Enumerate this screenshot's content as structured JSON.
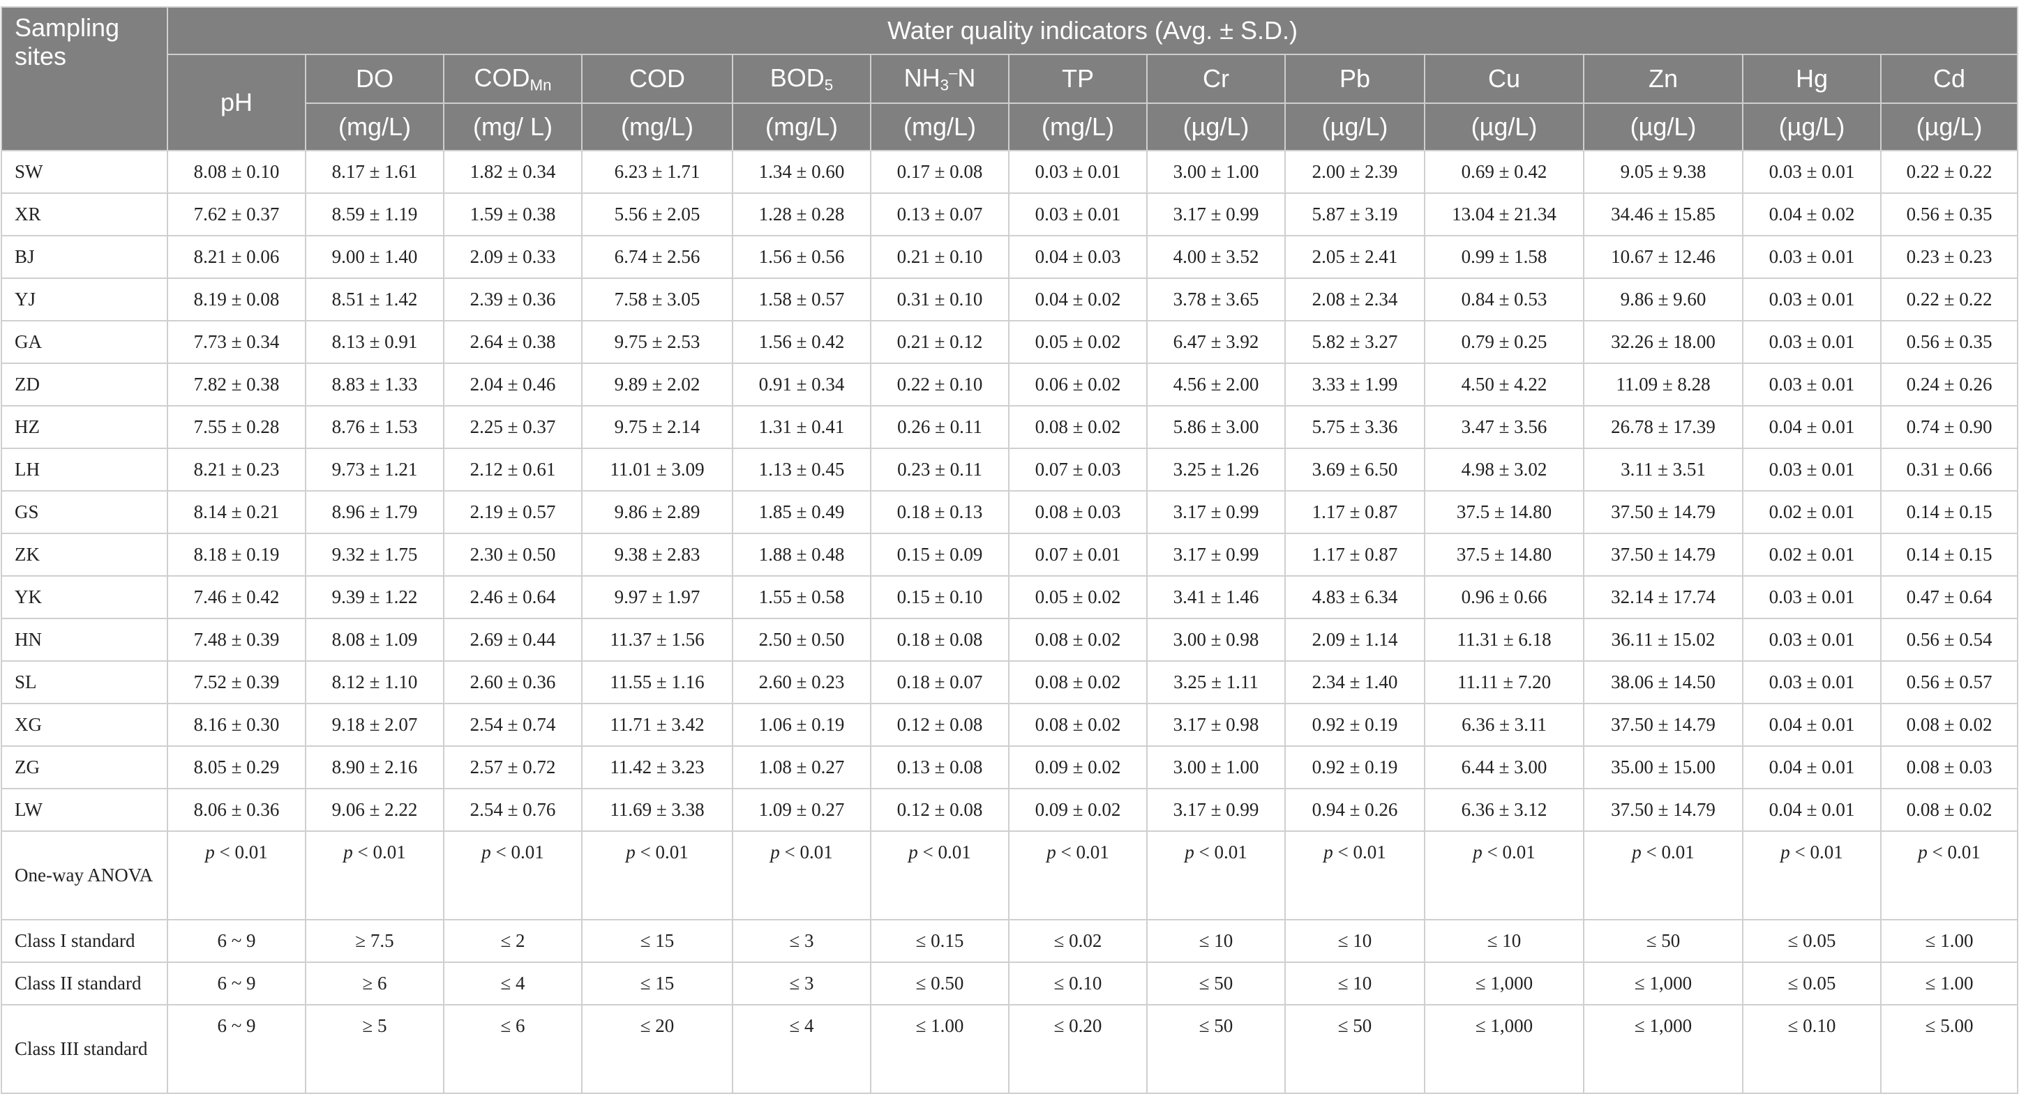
{
  "table": {
    "site_header": "Sampling sites",
    "group_header": "Water quality indicators (Avg. ± S.D.)",
    "indicators": [
      {
        "name": "pH",
        "sub": "",
        "sup": "",
        "suffix": "",
        "unit": ""
      },
      {
        "name": "DO",
        "sub": "",
        "sup": "",
        "suffix": "",
        "unit": "(mg/L)"
      },
      {
        "name": "COD",
        "sub": "Mn",
        "sup": "",
        "suffix": "",
        "unit": "(mg/ L)"
      },
      {
        "name": "COD",
        "sub": "",
        "sup": "",
        "suffix": "",
        "unit": "(mg/L)"
      },
      {
        "name": "BOD",
        "sub": "5",
        "sup": "",
        "suffix": "",
        "unit": "(mg/L)"
      },
      {
        "name": "NH",
        "sub": "3",
        "sup": "–",
        "suffix": "N",
        "unit": "(mg/L)"
      },
      {
        "name": "TP",
        "sub": "",
        "sup": "",
        "suffix": "",
        "unit": "(mg/L)"
      },
      {
        "name": "Cr",
        "sub": "",
        "sup": "",
        "suffix": "",
        "unit": "(µg/L)"
      },
      {
        "name": "Pb",
        "sub": "",
        "sup": "",
        "suffix": "",
        "unit": "(µg/L)"
      },
      {
        "name": "Cu",
        "sub": "",
        "sup": "",
        "suffix": "",
        "unit": "(µg/L)"
      },
      {
        "name": "Zn",
        "sub": "",
        "sup": "",
        "suffix": "",
        "unit": "(µg/L)"
      },
      {
        "name": "Hg",
        "sub": "",
        "sup": "",
        "suffix": "",
        "unit": "(µg/L)"
      },
      {
        "name": "Cd",
        "sub": "",
        "sup": "",
        "suffix": "",
        "unit": "(µg/L)"
      }
    ],
    "rows": [
      {
        "site": "SW",
        "values": [
          "8.08 ± 0.10",
          "8.17 ± 1.61",
          "1.82 ± 0.34",
          "6.23 ± 1.71",
          "1.34 ± 0.60",
          "0.17 ± 0.08",
          "0.03 ± 0.01",
          "3.00 ± 1.00",
          "2.00 ± 2.39",
          "0.69 ± 0.42",
          "9.05 ± 9.38",
          "0.03 ± 0.01",
          "0.22 ± 0.22"
        ]
      },
      {
        "site": "XR",
        "values": [
          "7.62 ± 0.37",
          "8.59 ± 1.19",
          "1.59 ± 0.38",
          "5.56 ± 2.05",
          "1.28 ± 0.28",
          "0.13 ± 0.07",
          "0.03 ± 0.01",
          "3.17 ± 0.99",
          "5.87 ± 3.19",
          "13.04 ± 21.34",
          "34.46 ± 15.85",
          "0.04 ± 0.02",
          "0.56 ± 0.35"
        ]
      },
      {
        "site": "BJ",
        "values": [
          "8.21 ± 0.06",
          "9.00 ± 1.40",
          "2.09 ± 0.33",
          "6.74 ± 2.56",
          "1.56 ± 0.56",
          "0.21 ± 0.10",
          "0.04 ± 0.03",
          "4.00 ± 3.52",
          "2.05 ± 2.41",
          "0.99 ± 1.58",
          "10.67 ± 12.46",
          "0.03 ± 0.01",
          "0.23 ± 0.23"
        ]
      },
      {
        "site": "YJ",
        "values": [
          "8.19 ± 0.08",
          "8.51 ± 1.42",
          "2.39 ± 0.36",
          "7.58 ± 3.05",
          "1.58 ± 0.57",
          "0.31 ± 0.10",
          "0.04 ± 0.02",
          "3.78 ± 3.65",
          "2.08 ± 2.34",
          "0.84 ± 0.53",
          "9.86 ± 9.60",
          "0.03 ± 0.01",
          "0.22 ± 0.22"
        ]
      },
      {
        "site": "GA",
        "values": [
          "7.73 ± 0.34",
          "8.13 ± 0.91",
          "2.64 ± 0.38",
          "9.75 ± 2.53",
          "1.56 ± 0.42",
          "0.21 ± 0.12",
          "0.05 ± 0.02",
          "6.47 ± 3.92",
          "5.82 ± 3.27",
          "0.79 ± 0.25",
          "32.26 ± 18.00",
          "0.03 ± 0.01",
          "0.56 ± 0.35"
        ]
      },
      {
        "site": "ZD",
        "values": [
          "7.82 ± 0.38",
          "8.83 ± 1.33",
          "2.04 ± 0.46",
          "9.89 ± 2.02",
          "0.91 ± 0.34",
          "0.22 ± 0.10",
          "0.06 ± 0.02",
          "4.56 ± 2.00",
          "3.33 ± 1.99",
          "4.50 ± 4.22",
          "11.09 ± 8.28",
          "0.03 ± 0.01",
          "0.24 ± 0.26"
        ]
      },
      {
        "site": "HZ",
        "values": [
          "7.55 ± 0.28",
          "8.76 ± 1.53",
          "2.25 ± 0.37",
          "9.75 ± 2.14",
          "1.31 ± 0.41",
          "0.26 ± 0.11",
          "0.08 ± 0.02",
          "5.86 ± 3.00",
          "5.75 ± 3.36",
          "3.47 ± 3.56",
          "26.78 ± 17.39",
          "0.04 ± 0.01",
          "0.74 ± 0.90"
        ]
      },
      {
        "site": "LH",
        "values": [
          "8.21 ± 0.23",
          "9.73 ± 1.21",
          "2.12 ± 0.61",
          "11.01 ± 3.09",
          "1.13 ± 0.45",
          "0.23 ± 0.11",
          "0.07 ± 0.03",
          "3.25 ± 1.26",
          "3.69 ± 6.50",
          "4.98 ± 3.02",
          "3.11 ± 3.51",
          "0.03 ± 0.01",
          "0.31 ± 0.66"
        ]
      },
      {
        "site": "GS",
        "values": [
          "8.14 ± 0.21",
          "8.96 ± 1.79",
          "2.19 ± 0.57",
          "9.86 ± 2.89",
          "1.85 ± 0.49",
          "0.18 ± 0.13",
          "0.08 ± 0.03",
          "3.17 ± 0.99",
          "1.17 ± 0.87",
          "37.5 ± 14.80",
          "37.50 ± 14.79",
          "0.02 ± 0.01",
          "0.14 ± 0.15"
        ]
      },
      {
        "site": "ZK",
        "values": [
          "8.18 ± 0.19",
          "9.32 ± 1.75",
          "2.30 ± 0.50",
          "9.38 ± 2.83",
          "1.88 ± 0.48",
          "0.15 ± 0.09",
          "0.07 ± 0.01",
          "3.17 ± 0.99",
          "1.17 ± 0.87",
          "37.5 ± 14.80",
          "37.50 ± 14.79",
          "0.02 ± 0.01",
          "0.14 ± 0.15"
        ]
      },
      {
        "site": "YK",
        "values": [
          "7.46 ± 0.42",
          "9.39 ± 1.22",
          "2.46 ± 0.64",
          "9.97 ± 1.97",
          "1.55 ± 0.58",
          "0.15 ± 0.10",
          "0.05 ± 0.02",
          "3.41 ± 1.46",
          "4.83 ± 6.34",
          "0.96 ± 0.66",
          "32.14 ± 17.74",
          "0.03 ± 0.01",
          "0.47 ± 0.64"
        ]
      },
      {
        "site": "HN",
        "values": [
          "7.48 ± 0.39",
          "8.08 ± 1.09",
          "2.69 ± 0.44",
          "11.37 ± 1.56",
          "2.50 ± 0.50",
          "0.18 ± 0.08",
          "0.08 ± 0.02",
          "3.00 ± 0.98",
          "2.09 ± 1.14",
          "11.31 ± 6.18",
          "36.11 ± 15.02",
          "0.03 ± 0.01",
          "0.56 ± 0.54"
        ]
      },
      {
        "site": "SL",
        "values": [
          "7.52 ± 0.39",
          "8.12 ± 1.10",
          "2.60 ± 0.36",
          "11.55 ± 1.16",
          "2.60 ± 0.23",
          "0.18 ± 0.07",
          "0.08 ± 0.02",
          "3.25 ± 1.11",
          "2.34 ± 1.40",
          "11.11 ± 7.20",
          "38.06 ± 14.50",
          "0.03 ± 0.01",
          "0.56 ± 0.57"
        ]
      },
      {
        "site": "XG",
        "values": [
          "8.16 ± 0.30",
          "9.18 ± 2.07",
          "2.54 ± 0.74",
          "11.71 ± 3.42",
          "1.06 ± 0.19",
          "0.12 ± 0.08",
          "0.08 ± 0.02",
          "3.17 ± 0.98",
          "0.92 ± 0.19",
          "6.36 ± 3.11",
          "37.50 ± 14.79",
          "0.04 ± 0.01",
          "0.08 ± 0.02"
        ]
      },
      {
        "site": "ZG",
        "values": [
          "8.05 ± 0.29",
          "8.90 ± 2.16",
          "2.57 ± 0.72",
          "11.42 ± 3.23",
          "1.08 ± 0.27",
          "0.13 ± 0.08",
          "0.09 ± 0.02",
          "3.00 ± 1.00",
          "0.92 ± 0.19",
          "6.44 ± 3.00",
          "35.00 ± 15.00",
          "0.04 ± 0.01",
          "0.08 ± 0.03"
        ]
      },
      {
        "site": "LW",
        "values": [
          "8.06 ± 0.36",
          "9.06 ± 2.22",
          "2.54 ± 0.76",
          "11.69 ± 3.38",
          "1.09 ± 0.27",
          "0.12 ± 0.08",
          "0.09 ± 0.02",
          "3.17 ± 0.99",
          "0.94 ± 0.26",
          "6.36 ± 3.12",
          "37.50 ± 14.79",
          "0.04 ± 0.01",
          "0.08 ± 0.02"
        ]
      }
    ],
    "anova": {
      "label": "One-way ANOVA",
      "p_symbol": "p",
      "p_rest": " < 0.01"
    },
    "standards": [
      {
        "label": "Class I standard",
        "values": [
          "6 ~ 9",
          "≥ 7.5",
          "≤ 2",
          "≤ 15",
          "≤ 3",
          "≤ 0.15",
          "≤ 0.02",
          "≤ 10",
          "≤ 10",
          "≤ 10",
          "≤ 50",
          "≤ 0.05",
          "≤ 1.00"
        ]
      },
      {
        "label": "Class II standard",
        "values": [
          "6 ~ 9",
          "≥ 6",
          "≤ 4",
          "≤ 15",
          "≤ 3",
          "≤ 0.50",
          "≤ 0.10",
          "≤ 50",
          "≤ 10",
          "≤ 1,000",
          "≤ 1,000",
          "≤ 0.05",
          "≤ 1.00"
        ]
      },
      {
        "label": "Class III standard",
        "values": [
          "6 ~ 9",
          "≥ 5",
          "≤ 6",
          "≤ 20",
          "≤ 4",
          "≤ 1.00",
          "≤ 0.20",
          "≤ 50",
          "≤ 50",
          "≤ 1,000",
          "≤ 1,000",
          "≤ 0.10",
          "≤ 5.00"
        ]
      }
    ],
    "colors": {
      "header_bg": "#808080",
      "header_text": "#ffffff",
      "border": "#cfcfcf",
      "body_text": "#222222"
    }
  }
}
